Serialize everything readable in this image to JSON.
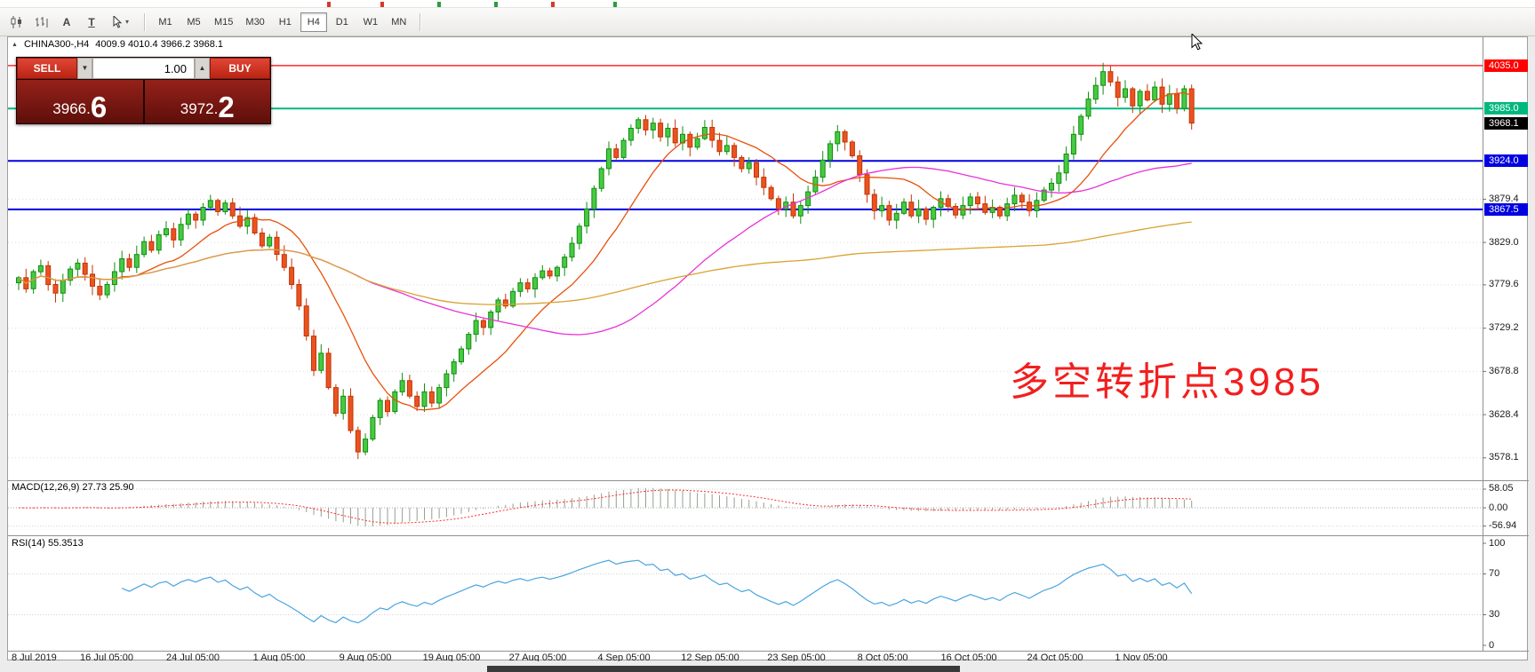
{
  "toolbar": {
    "icons": [
      {
        "name": "candlestick-chart-icon"
      },
      {
        "name": "bar-chart-icon"
      },
      {
        "name": "text-label-icon",
        "glyph": "A"
      },
      {
        "name": "text-box-icon",
        "glyph": "T"
      },
      {
        "name": "cursor-mode-icon"
      }
    ],
    "timeframes": [
      {
        "label": "M1",
        "active": false
      },
      {
        "label": "M5",
        "active": false
      },
      {
        "label": "M15",
        "active": false
      },
      {
        "label": "M30",
        "active": false
      },
      {
        "label": "H1",
        "active": false
      },
      {
        "label": "H4",
        "active": true
      },
      {
        "label": "D1",
        "active": false
      },
      {
        "label": "W1",
        "active": false
      },
      {
        "label": "MN",
        "active": false
      }
    ]
  },
  "chart": {
    "symbol_period": "CHINA300-,H4",
    "ohlc_text": "4009.9 4010.4 3966.2 3968.1",
    "annotation": "多空转折点3985",
    "annotation_color": "#f21f1f",
    "levels": [
      {
        "price": 4035.0,
        "label": "4035.0",
        "color": "#ff0000",
        "width": 1.2
      },
      {
        "price": 3985.0,
        "label": "3985.0",
        "color": "#00b87e",
        "width": 2
      },
      {
        "price": 3968.1,
        "label": "3968.1",
        "color": "#000000",
        "width": 0
      },
      {
        "price": 3924.0,
        "label": "3924.0",
        "color": "#0000e0",
        "width": 2
      },
      {
        "price": 3867.5,
        "label": "3867.5",
        "color": "#0000e0",
        "width": 2
      }
    ],
    "axis_ticks": [
      {
        "price": 3879.4,
        "label": "3879.4"
      },
      {
        "price": 3829.0,
        "label": "3829.0"
      },
      {
        "price": 3779.6,
        "label": "3779.6"
      },
      {
        "price": 3729.2,
        "label": "3729.2"
      },
      {
        "price": 3678.8,
        "label": "3678.8"
      },
      {
        "price": 3628.4,
        "label": "3628.4"
      },
      {
        "price": 3578.1,
        "label": "3578.1"
      }
    ]
  },
  "trade_panel": {
    "sell_label": "SELL",
    "buy_label": "BUY",
    "volume": "1.00",
    "bid": "3966.6",
    "ask": "3972.2",
    "bid_main": "3966.",
    "bid_big": "6",
    "ask_main": "3972.",
    "ask_big": "2"
  },
  "macd": {
    "label": "MACD(12,26,9) 27.73 25.90",
    "values": [
      27.73,
      25.9
    ],
    "axis": [
      {
        "v": 58.05,
        "label": "58.05"
      },
      {
        "v": 0,
        "label": "0.00"
      },
      {
        "v": -56.94,
        "label": "-56.94"
      }
    ]
  },
  "rsi": {
    "label": "RSI(14) 55.3513",
    "value": 55.3513,
    "axis": [
      {
        "v": 100,
        "label": "100"
      },
      {
        "v": 70,
        "label": "70"
      },
      {
        "v": 30,
        "label": "30"
      },
      {
        "v": 0,
        "label": "0"
      }
    ],
    "levels": [
      70,
      30
    ]
  },
  "chart_data": {
    "type": "candlestick",
    "symbol": "CHINA300-",
    "timeframe": "H4",
    "title": "CHINA300-,H4 4009.9 4010.4 3966.2 3968.1",
    "x_labels": [
      "8 Jul 2019",
      "16 Jul 05:00",
      "24 Jul 05:00",
      "1 Aug 05:00",
      "9 Aug 05:00",
      "19 Aug 05:00",
      "27 Aug 05:00",
      "4 Sep 05:00",
      "12 Sep 05:00",
      "23 Sep 05:00",
      "8 Oct 05:00",
      "16 Oct 05:00",
      "24 Oct 05:00",
      "1 Nov 05:00"
    ],
    "y_range": [
      3552,
      4068
    ],
    "current_price": 3968.1,
    "horizontal_lines": [
      4035.0,
      3985.0,
      3924.0,
      3867.5
    ],
    "closes": [
      3788,
      3775,
      3795,
      3802,
      3780,
      3770,
      3785,
      3798,
      3805,
      3792,
      3778,
      3768,
      3780,
      3795,
      3810,
      3800,
      3815,
      3830,
      3820,
      3838,
      3845,
      3832,
      3850,
      3862,
      3855,
      3870,
      3878,
      3865,
      3875,
      3860,
      3848,
      3858,
      3840,
      3825,
      3835,
      3815,
      3800,
      3780,
      3755,
      3720,
      3680,
      3700,
      3660,
      3630,
      3650,
      3610,
      3585,
      3600,
      3625,
      3645,
      3632,
      3655,
      3668,
      3650,
      3638,
      3655,
      3642,
      3660,
      3676,
      3690,
      3705,
      3722,
      3738,
      3730,
      3748,
      3762,
      3755,
      3772,
      3782,
      3775,
      3788,
      3796,
      3790,
      3800,
      3812,
      3828,
      3848,
      3868,
      3892,
      3915,
      3938,
      3928,
      3948,
      3962,
      3972,
      3960,
      3968,
      3952,
      3962,
      3945,
      3955,
      3940,
      3950,
      3963,
      3948,
      3935,
      3942,
      3928,
      3915,
      3922,
      3905,
      3893,
      3880,
      3868,
      3876,
      3860,
      3872,
      3888,
      3905,
      3925,
      3944,
      3958,
      3946,
      3930,
      3908,
      3885,
      3866,
      3872,
      3855,
      3863,
      3876,
      3860,
      3868,
      3856,
      3870,
      3880,
      3871,
      3861,
      3872,
      3882,
      3874,
      3864,
      3870,
      3860,
      3874,
      3884,
      3876,
      3866,
      3878,
      3890,
      3898,
      3910,
      3932,
      3955,
      3976,
      3996,
      4012,
      4028,
      4016,
      3998,
      4008,
      3988,
      4005,
      3995,
      4010,
      3990,
      4002,
      3985,
      4008,
      3968
    ],
    "overlays": [
      {
        "name": "ma-fast",
        "type": "sma",
        "period": 13,
        "color": "#e8500a"
      },
      {
        "name": "ma-medium",
        "type": "sma",
        "period": 45,
        "color": "#e832d8"
      },
      {
        "name": "ma-slow",
        "type": "sma",
        "period": 140,
        "color": "#d8a232"
      }
    ],
    "indicators": [
      {
        "name": "MACD",
        "params": [
          12,
          26,
          9
        ],
        "current": [
          27.73,
          25.9
        ],
        "axis_range": [
          -56.94,
          58.05
        ]
      },
      {
        "name": "RSI",
        "params": [
          14
        ],
        "current": 55.3513,
        "axis_range": [
          0,
          100
        ],
        "levels": [
          70,
          30
        ]
      }
    ]
  }
}
